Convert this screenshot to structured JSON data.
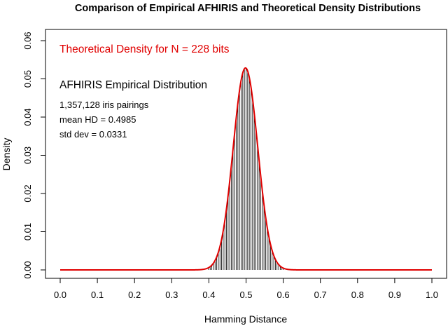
{
  "chart_data": {
    "type": "histogram-with-density",
    "title": "Comparison of Empirical AFHIRIS and Theoretical Density Distributions",
    "xlabel": "Hamming Distance",
    "ylabel": "Density",
    "xlim": [
      0.0,
      1.0
    ],
    "ylim": [
      0.0,
      0.062
    ],
    "x_ticks": [
      "0.0",
      "0.1",
      "0.2",
      "0.3",
      "0.4",
      "0.5",
      "0.6",
      "0.7",
      "0.8",
      "0.9",
      "1.0"
    ],
    "y_ticks": [
      "0.00",
      "0.01",
      "0.02",
      "0.03",
      "0.04",
      "0.05",
      "0.06"
    ],
    "grid": false,
    "bar_color": "#000000",
    "density_color": "#e00000",
    "n_bits": 228,
    "mean_hd": 0.4985,
    "std_dev": 0.0331,
    "annotations": {
      "theoretical": "Theoretical Density for N = 228 bits",
      "empirical_title": "AFHIRIS Empirical Distribution",
      "pairings": "1,357,128 iris pairings",
      "mean": "mean HD =  0.4985",
      "std": "std dev =  0.0331"
    }
  }
}
